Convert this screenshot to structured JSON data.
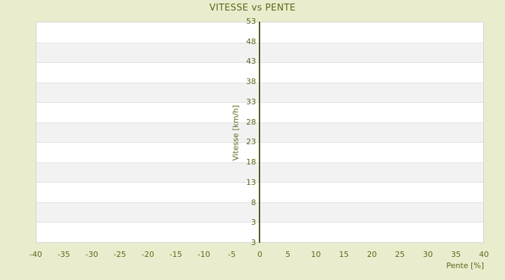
{
  "chart_data": {
    "type": "line",
    "title": "VITESSE vs PENTE",
    "xlabel": "Pente [%]",
    "ylabel": "Vitesse [km/h]",
    "x_ticks": [
      -40,
      -35,
      -30,
      -25,
      -20,
      -15,
      -10,
      -5,
      0,
      5,
      10,
      15,
      20,
      25,
      30,
      35,
      40
    ],
    "y_ticks": [
      53,
      48,
      43,
      38,
      33,
      28,
      23,
      18,
      13,
      8,
      3
    ],
    "y_axis_bottom_label": "3",
    "xlim": [
      -40,
      40
    ],
    "ylim": [
      -2,
      53
    ],
    "series": [],
    "grid": "alternating horizontal bands, zero vertical axis line at x=0",
    "legend": "none"
  },
  "colors": {
    "background": "#e9edcd",
    "text": "#5b671a",
    "axis_zero_line": "#4d5a10",
    "band_white": "#ffffff",
    "band_gray": "#f2f2f2",
    "gridline": "#e2e2e4",
    "plot_border": "#d4d4d4"
  }
}
